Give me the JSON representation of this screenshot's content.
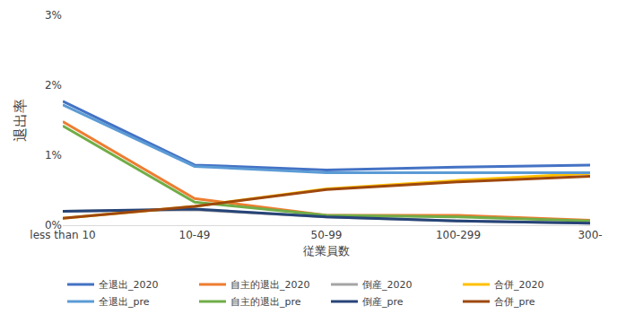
{
  "chart_data": {
    "type": "line",
    "x_label": "従業員数",
    "y_label": "退出率",
    "categories": [
      "less than 10",
      "10-49",
      "50-99",
      "100-299",
      "300-"
    ],
    "ylim": [
      0,
      3
    ],
    "yticks": [
      {
        "value": 0,
        "label": "0%"
      },
      {
        "value": 1,
        "label": "1%"
      },
      {
        "value": 2,
        "label": "2%"
      },
      {
        "value": 3,
        "label": "3%"
      }
    ],
    "grid": false,
    "legend": "bottom",
    "series": [
      {
        "name": "全退出_2020",
        "color": "#4472c4",
        "values": [
          1.77,
          0.86,
          0.79,
          0.83,
          0.86
        ]
      },
      {
        "name": "自主的退出_2020",
        "color": "#ed7d31",
        "values": [
          1.48,
          0.38,
          0.14,
          0.14,
          0.07
        ]
      },
      {
        "name": "倒産_2020",
        "color": "#a5a5a5",
        "values": [
          0.2,
          0.22,
          0.12,
          0.06,
          0.03
        ]
      },
      {
        "name": "合併_2020",
        "color": "#ffc000",
        "values": [
          0.1,
          0.27,
          0.52,
          0.64,
          0.74
        ]
      },
      {
        "name": "全退出_pre",
        "color": "#5b9bd5",
        "values": [
          1.72,
          0.84,
          0.75,
          0.75,
          0.75
        ]
      },
      {
        "name": "自主的退出_pre",
        "color": "#70ad47",
        "values": [
          1.42,
          0.33,
          0.14,
          0.12,
          0.06
        ]
      },
      {
        "name": "倒産_pre",
        "color": "#264478",
        "values": [
          0.2,
          0.23,
          0.12,
          0.06,
          0.03
        ]
      },
      {
        "name": "合併_pre",
        "color": "#9e480e",
        "values": [
          0.1,
          0.27,
          0.51,
          0.62,
          0.7
        ]
      }
    ]
  }
}
